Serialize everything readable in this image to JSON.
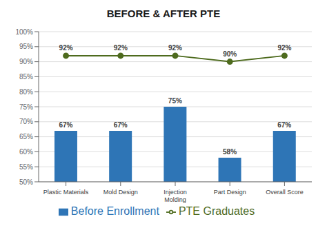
{
  "chart_data": {
    "type": "combo",
    "title": "BEFORE & AFTER PTE",
    "categories": [
      "Plastic Materials",
      "Mold Design",
      "Injection\nMolding",
      "Part Design",
      "Overall Score"
    ],
    "series": [
      {
        "name": "Before Enrollment",
        "type": "bar",
        "color": "#2E75B6",
        "values": [
          67,
          67,
          75,
          58,
          67
        ],
        "value_labels": [
          "67%",
          "67%",
          "75%",
          "58%",
          "67%"
        ]
      },
      {
        "name": "PTE Graduates",
        "type": "line",
        "color": "#4E6B1E",
        "marker": "circle",
        "values": [
          92,
          92,
          92,
          90,
          92
        ],
        "value_labels": [
          "92%",
          "92%",
          "92%",
          "90%",
          "92%"
        ]
      }
    ],
    "ylim": [
      50,
      100
    ],
    "yticks": [
      {
        "value": 50,
        "label": "50%"
      },
      {
        "value": 55,
        "label": "55%"
      },
      {
        "value": 60,
        "label": "60%"
      },
      {
        "value": 65,
        "label": "65%"
      },
      {
        "value": 70,
        "label": "70%"
      },
      {
        "value": 75,
        "label": "75%"
      },
      {
        "value": 80,
        "label": "80%"
      },
      {
        "value": 85,
        "label": "85%"
      },
      {
        "value": 90,
        "label": "90%"
      },
      {
        "value": 95,
        "label": "95%"
      },
      {
        "value": 100,
        "label": "100%"
      }
    ],
    "grid": true,
    "legend": "bottom",
    "data_labels": true
  }
}
